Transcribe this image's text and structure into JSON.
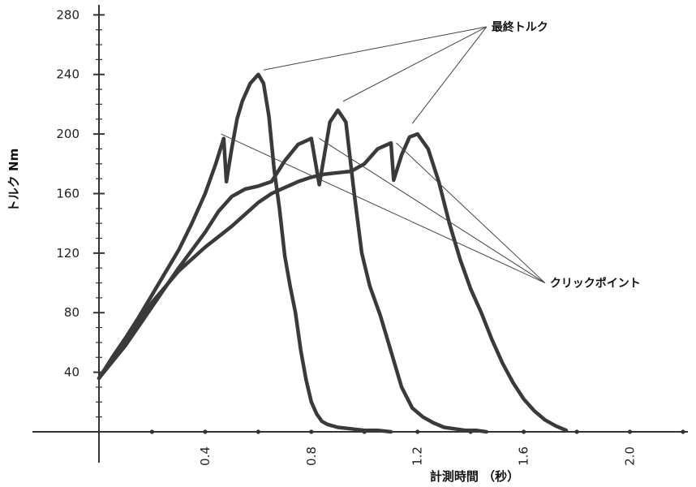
{
  "chart_data": {
    "type": "line",
    "xlabel": "計測時間 （秒）",
    "ylabel": "トルク Nm",
    "xlim": [
      0,
      2.2
    ],
    "ylim": [
      0,
      290
    ],
    "xticks": [
      0.4,
      0.8,
      1.2,
      1.6,
      2.0
    ],
    "xtick_labels": [
      "0.4",
      "0.8",
      "1.2",
      "1.6",
      "2.0"
    ],
    "yticks": [
      40,
      80,
      120,
      160,
      200,
      240,
      280
    ],
    "ytick_labels": [
      "40",
      "80",
      "120",
      "160",
      "200",
      "240",
      "280"
    ],
    "grid": false,
    "line_color": "#3a3a3a",
    "annotations": [
      {
        "label": "最終トルク",
        "text_at": [
          1.46,
          272
        ],
        "targets": [
          [
            0.62,
            243
          ],
          [
            0.92,
            222
          ],
          [
            1.18,
            207
          ]
        ]
      },
      {
        "label": "クリックポイント",
        "text_at": [
          1.68,
          100
        ],
        "targets": [
          [
            0.46,
            200
          ],
          [
            0.83,
            197
          ],
          [
            1.12,
            194
          ]
        ]
      }
    ],
    "series": [
      {
        "x": [
          0,
          0.05,
          0.1,
          0.15,
          0.2,
          0.25,
          0.3,
          0.35,
          0.4,
          0.44,
          0.47,
          0.48,
          0.5,
          0.52,
          0.54,
          0.57,
          0.6,
          0.62,
          0.64,
          0.66,
          0.68,
          0.7,
          0.72,
          0.74,
          0.76,
          0.78,
          0.8,
          0.82,
          0.84,
          0.86,
          0.9,
          0.95,
          1.0,
          1.05,
          1.1
        ],
        "y": [
          36,
          50,
          63,
          77,
          92,
          107,
          122,
          140,
          160,
          180,
          197,
          168,
          190,
          210,
          222,
          234,
          240,
          234,
          212,
          176,
          150,
          118,
          98,
          80,
          55,
          35,
          20,
          12,
          7,
          5,
          3,
          2,
          1,
          1,
          0
        ]
      },
      {
        "x": [
          0,
          0.1,
          0.2,
          0.3,
          0.4,
          0.45,
          0.5,
          0.55,
          0.6,
          0.65,
          0.7,
          0.75,
          0.8,
          0.85,
          0.9,
          0.95,
          1.0,
          1.05,
          1.1,
          1.11,
          1.14,
          1.17,
          1.2,
          1.24,
          1.28,
          1.32,
          1.36,
          1.4,
          1.44,
          1.48,
          1.52,
          1.56,
          1.6,
          1.64,
          1.68,
          1.72,
          1.76
        ],
        "y": [
          36,
          60,
          87,
          108,
          124,
          131,
          138,
          146,
          154,
          160,
          164,
          168,
          171,
          173,
          174,
          175,
          180,
          190,
          194,
          169,
          186,
          198,
          200,
          190,
          168,
          140,
          116,
          96,
          80,
          62,
          46,
          33,
          22,
          14,
          8,
          4,
          1
        ]
      },
      {
        "x": [
          0,
          0.1,
          0.2,
          0.3,
          0.4,
          0.45,
          0.5,
          0.55,
          0.6,
          0.65,
          0.7,
          0.75,
          0.8,
          0.83,
          0.85,
          0.87,
          0.9,
          0.93,
          0.96,
          0.99,
          1.02,
          1.06,
          1.1,
          1.14,
          1.18,
          1.22,
          1.26,
          1.3,
          1.34,
          1.38,
          1.42,
          1.46
        ],
        "y": [
          36,
          58,
          84,
          110,
          134,
          148,
          158,
          163,
          165,
          168,
          182,
          193,
          197,
          166,
          187,
          208,
          216,
          208,
          162,
          120,
          98,
          78,
          54,
          30,
          16,
          10,
          6,
          3,
          2,
          1,
          1,
          0
        ]
      }
    ]
  }
}
